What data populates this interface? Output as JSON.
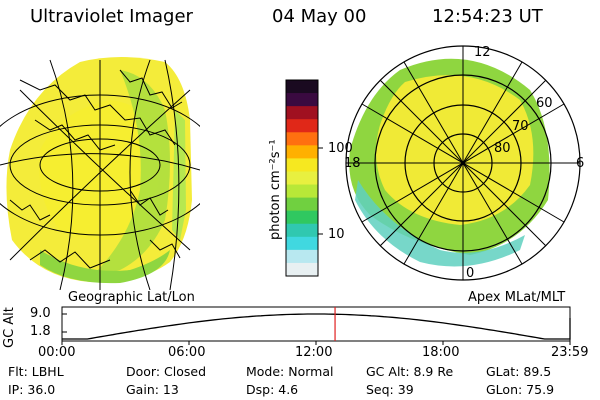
{
  "header": {
    "instrument": "Ultraviolet Imager",
    "date": "04 May 00",
    "time": "12:54:23 UT"
  },
  "left_panel": {
    "caption": "Geographic Lat/Lon"
  },
  "right_panel": {
    "caption": "Apex MLat/MLT",
    "mlt_labels": [
      "12",
      "18",
      "6",
      "0"
    ],
    "lat_labels": [
      "60",
      "70",
      "80"
    ]
  },
  "colorbar": {
    "unit_label": "photon cm⁻²s⁻¹",
    "tick_labels": [
      "100",
      "10"
    ],
    "colors": [
      "#1a0a20",
      "#3a0a40",
      "#a01020",
      "#e02818",
      "#ff7010",
      "#ffb000",
      "#f6e820",
      "#e8f040",
      "#b8e838",
      "#70d040",
      "#30c860",
      "#30c8b0",
      "#40d8e0",
      "#b8e8f0",
      "#e8f0f2"
    ]
  },
  "altitude_plot": {
    "ylabel": "GC Alt",
    "ytick_labels": [
      "9.0",
      "1.8"
    ],
    "xtick_labels": [
      "00:00",
      "06:00",
      "12:00",
      "18:00",
      "23:59"
    ],
    "curve_color": "#000000",
    "marker_color": "#e02020",
    "current_time_hours": 12.9
  },
  "footer": {
    "row1": {
      "flt": "Flt: LBHL",
      "door": "Door: Closed",
      "mode": "Mode: Normal",
      "gcalt": "GC Alt: 8.9 Re",
      "glat": "GLat:  89.5"
    },
    "row2": {
      "ip": "IP: 36.0",
      "gain": "Gain: 13",
      "dsp": "Dsp:     4.6",
      "seq": "Seq: 39",
      "glon": "GLon:  75.9"
    }
  }
}
